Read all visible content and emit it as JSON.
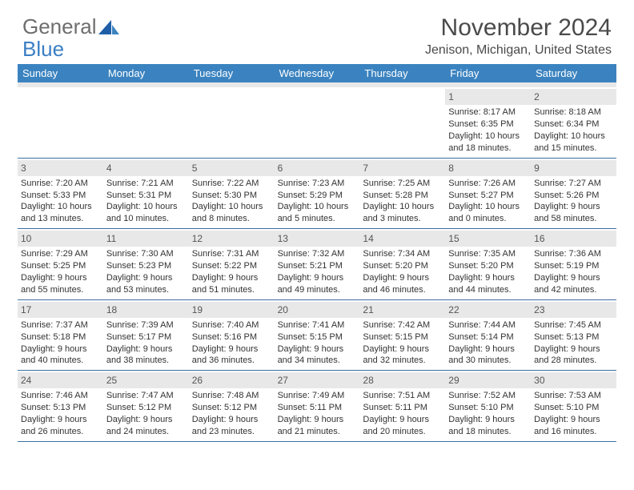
{
  "brand": {
    "word1": "General",
    "word2": "Blue"
  },
  "header": {
    "month_title": "November 2024",
    "location": "Jenison, Michigan, United States"
  },
  "colors": {
    "header_bg": "#3b83c0",
    "header_text": "#ffffff",
    "daynum_bg": "#e8e8e8",
    "border": "#3b6fa0",
    "brand_gray": "#6e6e6e",
    "brand_blue": "#3b7fc4"
  },
  "weekdays": [
    "Sunday",
    "Monday",
    "Tuesday",
    "Wednesday",
    "Thursday",
    "Friday",
    "Saturday"
  ],
  "weeks": [
    [
      {
        "n": "",
        "sr": "",
        "ss": "",
        "dl": ""
      },
      {
        "n": "",
        "sr": "",
        "ss": "",
        "dl": ""
      },
      {
        "n": "",
        "sr": "",
        "ss": "",
        "dl": ""
      },
      {
        "n": "",
        "sr": "",
        "ss": "",
        "dl": ""
      },
      {
        "n": "",
        "sr": "",
        "ss": "",
        "dl": ""
      },
      {
        "n": "1",
        "sr": "Sunrise: 8:17 AM",
        "ss": "Sunset: 6:35 PM",
        "dl": "Daylight: 10 hours and 18 minutes."
      },
      {
        "n": "2",
        "sr": "Sunrise: 8:18 AM",
        "ss": "Sunset: 6:34 PM",
        "dl": "Daylight: 10 hours and 15 minutes."
      }
    ],
    [
      {
        "n": "3",
        "sr": "Sunrise: 7:20 AM",
        "ss": "Sunset: 5:33 PM",
        "dl": "Daylight: 10 hours and 13 minutes."
      },
      {
        "n": "4",
        "sr": "Sunrise: 7:21 AM",
        "ss": "Sunset: 5:31 PM",
        "dl": "Daylight: 10 hours and 10 minutes."
      },
      {
        "n": "5",
        "sr": "Sunrise: 7:22 AM",
        "ss": "Sunset: 5:30 PM",
        "dl": "Daylight: 10 hours and 8 minutes."
      },
      {
        "n": "6",
        "sr": "Sunrise: 7:23 AM",
        "ss": "Sunset: 5:29 PM",
        "dl": "Daylight: 10 hours and 5 minutes."
      },
      {
        "n": "7",
        "sr": "Sunrise: 7:25 AM",
        "ss": "Sunset: 5:28 PM",
        "dl": "Daylight: 10 hours and 3 minutes."
      },
      {
        "n": "8",
        "sr": "Sunrise: 7:26 AM",
        "ss": "Sunset: 5:27 PM",
        "dl": "Daylight: 10 hours and 0 minutes."
      },
      {
        "n": "9",
        "sr": "Sunrise: 7:27 AM",
        "ss": "Sunset: 5:26 PM",
        "dl": "Daylight: 9 hours and 58 minutes."
      }
    ],
    [
      {
        "n": "10",
        "sr": "Sunrise: 7:29 AM",
        "ss": "Sunset: 5:25 PM",
        "dl": "Daylight: 9 hours and 55 minutes."
      },
      {
        "n": "11",
        "sr": "Sunrise: 7:30 AM",
        "ss": "Sunset: 5:23 PM",
        "dl": "Daylight: 9 hours and 53 minutes."
      },
      {
        "n": "12",
        "sr": "Sunrise: 7:31 AM",
        "ss": "Sunset: 5:22 PM",
        "dl": "Daylight: 9 hours and 51 minutes."
      },
      {
        "n": "13",
        "sr": "Sunrise: 7:32 AM",
        "ss": "Sunset: 5:21 PM",
        "dl": "Daylight: 9 hours and 49 minutes."
      },
      {
        "n": "14",
        "sr": "Sunrise: 7:34 AM",
        "ss": "Sunset: 5:20 PM",
        "dl": "Daylight: 9 hours and 46 minutes."
      },
      {
        "n": "15",
        "sr": "Sunrise: 7:35 AM",
        "ss": "Sunset: 5:20 PM",
        "dl": "Daylight: 9 hours and 44 minutes."
      },
      {
        "n": "16",
        "sr": "Sunrise: 7:36 AM",
        "ss": "Sunset: 5:19 PM",
        "dl": "Daylight: 9 hours and 42 minutes."
      }
    ],
    [
      {
        "n": "17",
        "sr": "Sunrise: 7:37 AM",
        "ss": "Sunset: 5:18 PM",
        "dl": "Daylight: 9 hours and 40 minutes."
      },
      {
        "n": "18",
        "sr": "Sunrise: 7:39 AM",
        "ss": "Sunset: 5:17 PM",
        "dl": "Daylight: 9 hours and 38 minutes."
      },
      {
        "n": "19",
        "sr": "Sunrise: 7:40 AM",
        "ss": "Sunset: 5:16 PM",
        "dl": "Daylight: 9 hours and 36 minutes."
      },
      {
        "n": "20",
        "sr": "Sunrise: 7:41 AM",
        "ss": "Sunset: 5:15 PM",
        "dl": "Daylight: 9 hours and 34 minutes."
      },
      {
        "n": "21",
        "sr": "Sunrise: 7:42 AM",
        "ss": "Sunset: 5:15 PM",
        "dl": "Daylight: 9 hours and 32 minutes."
      },
      {
        "n": "22",
        "sr": "Sunrise: 7:44 AM",
        "ss": "Sunset: 5:14 PM",
        "dl": "Daylight: 9 hours and 30 minutes."
      },
      {
        "n": "23",
        "sr": "Sunrise: 7:45 AM",
        "ss": "Sunset: 5:13 PM",
        "dl": "Daylight: 9 hours and 28 minutes."
      }
    ],
    [
      {
        "n": "24",
        "sr": "Sunrise: 7:46 AM",
        "ss": "Sunset: 5:13 PM",
        "dl": "Daylight: 9 hours and 26 minutes."
      },
      {
        "n": "25",
        "sr": "Sunrise: 7:47 AM",
        "ss": "Sunset: 5:12 PM",
        "dl": "Daylight: 9 hours and 24 minutes."
      },
      {
        "n": "26",
        "sr": "Sunrise: 7:48 AM",
        "ss": "Sunset: 5:12 PM",
        "dl": "Daylight: 9 hours and 23 minutes."
      },
      {
        "n": "27",
        "sr": "Sunrise: 7:49 AM",
        "ss": "Sunset: 5:11 PM",
        "dl": "Daylight: 9 hours and 21 minutes."
      },
      {
        "n": "28",
        "sr": "Sunrise: 7:51 AM",
        "ss": "Sunset: 5:11 PM",
        "dl": "Daylight: 9 hours and 20 minutes."
      },
      {
        "n": "29",
        "sr": "Sunrise: 7:52 AM",
        "ss": "Sunset: 5:10 PM",
        "dl": "Daylight: 9 hours and 18 minutes."
      },
      {
        "n": "30",
        "sr": "Sunrise: 7:53 AM",
        "ss": "Sunset: 5:10 PM",
        "dl": "Daylight: 9 hours and 16 minutes."
      }
    ]
  ]
}
